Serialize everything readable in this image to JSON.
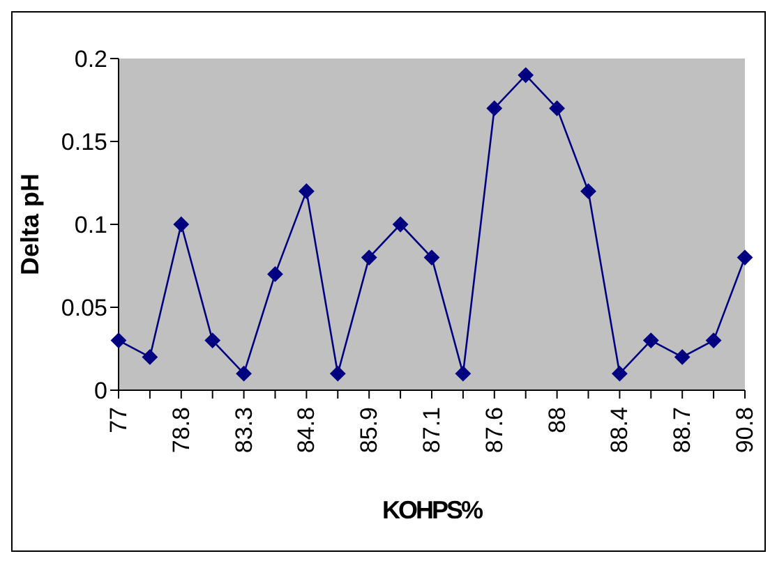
{
  "chart_data": {
    "type": "line",
    "xlabel": "KOHPS%",
    "ylabel": "Delta pH",
    "categories": [
      "77",
      null,
      "78.8",
      null,
      "83.3",
      null,
      "84.8",
      null,
      "85.9",
      null,
      "87.1",
      null,
      "87.6",
      null,
      "88",
      null,
      "88.4",
      null,
      "88.7",
      null,
      "90.8"
    ],
    "series": [
      {
        "color": "#000080",
        "values": [
          0.03,
          0.02,
          0.1,
          0.03,
          0.01,
          0.07,
          0.12,
          0.01,
          0.08,
          0.1,
          0.08,
          0.01,
          0.17,
          0.19,
          0.17,
          0.12,
          0.01,
          0.03,
          0.02,
          0.03,
          0.08
        ]
      }
    ],
    "ylim": [
      0,
      0.2
    ],
    "yticks": [
      0,
      0.05,
      0.1,
      0.15,
      0.2
    ],
    "grid": false,
    "marker": "diamond",
    "line_style": "solid"
  }
}
